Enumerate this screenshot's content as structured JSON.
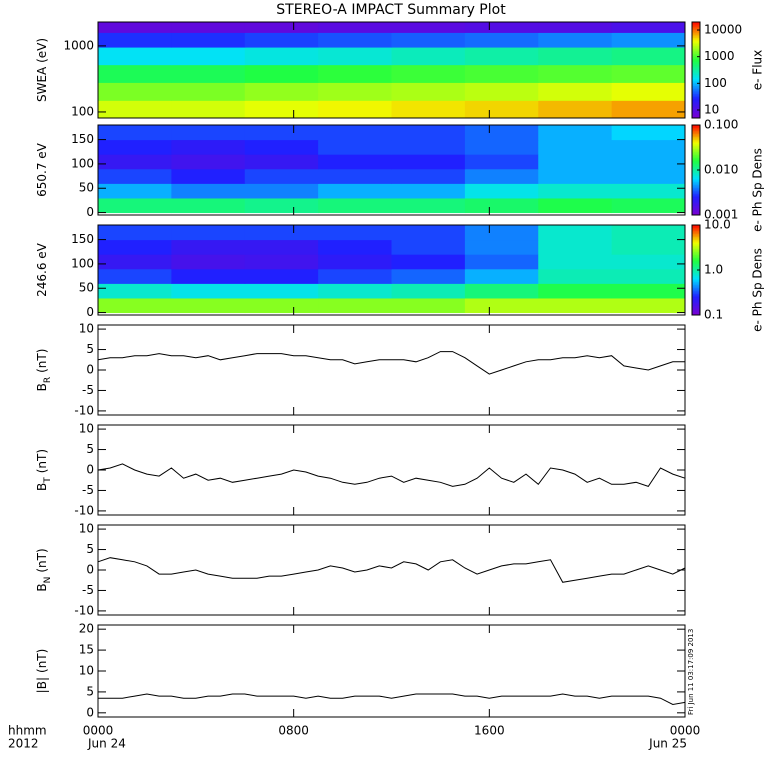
{
  "chart_data": [
    {
      "type": "heatmap",
      "title": "STEREO-A IMPACT Summary Plot",
      "ylabel": "SWEA (eV)",
      "log_y": true,
      "ylim": [
        81,
        2300
      ],
      "yticks": [
        100,
        1000
      ],
      "xlim": [
        0,
        24
      ],
      "xticks": [
        0,
        8,
        16,
        24
      ],
      "xbins": [
        0,
        3,
        6,
        9,
        12,
        15,
        18,
        21,
        24
      ],
      "ybins": [
        81,
        150,
        280,
        520,
        960,
        1600,
        2300
      ],
      "z": [
        [
          3000,
          3000,
          3500,
          4000,
          4500,
          5000,
          6000,
          7000
        ],
        [
          1500,
          1500,
          1800,
          2000,
          2200,
          2500,
          3000,
          3500
        ],
        [
          600,
          600,
          700,
          800,
          900,
          1000,
          1100,
          1200
        ],
        [
          150,
          150,
          180,
          200,
          250,
          300,
          350,
          400
        ],
        [
          30,
          30,
          35,
          40,
          45,
          50,
          60,
          70
        ],
        [
          8,
          8,
          8,
          9,
          9,
          10,
          10,
          12
        ]
      ],
      "clim": [
        5,
        20000
      ],
      "cticks": [
        10,
        100,
        1000,
        10000
      ],
      "colorbar_label": "e- Flux",
      "colormap": [
        "#7a00d0",
        "#2020ff",
        "#00e0ff",
        "#20ff40",
        "#f0ff00",
        "#ff0000"
      ]
    },
    {
      "type": "heatmap",
      "ylabel": "650.7 eV",
      "log_y": false,
      "ylim": [
        -5,
        180
      ],
      "yticks": [
        0,
        50,
        100,
        150
      ],
      "xlim": [
        0,
        24
      ],
      "xticks": [
        0,
        8,
        16,
        24
      ],
      "xbins": [
        0,
        3,
        6,
        9,
        12,
        15,
        18,
        21,
        24
      ],
      "ybins": [
        0,
        30,
        60,
        90,
        120,
        150,
        180
      ],
      "z": [
        [
          0.012,
          0.012,
          0.011,
          0.012,
          0.012,
          0.013,
          0.015,
          0.014
        ],
        [
          0.005,
          0.004,
          0.004,
          0.005,
          0.005,
          0.007,
          0.008,
          0.008
        ],
        [
          0.003,
          0.0025,
          0.003,
          0.003,
          0.003,
          0.004,
          0.005,
          0.005
        ],
        [
          0.002,
          0.0018,
          0.002,
          0.0025,
          0.0025,
          0.003,
          0.005,
          0.005
        ],
        [
          0.0025,
          0.0022,
          0.0025,
          0.003,
          0.003,
          0.0035,
          0.005,
          0.005
        ],
        [
          0.003,
          0.003,
          0.003,
          0.003,
          0.003,
          0.0035,
          0.005,
          0.006
        ]
      ],
      "clim": [
        0.001,
        0.1
      ],
      "cticks": [
        0.001,
        {
          "value": 0.01,
          "label": "0.010"
        },
        {
          "value": 0.1,
          "label": "0.100"
        }
      ],
      "colorbar_label": "e- Ph Sp Dens",
      "colormap": [
        "#7a00d0",
        "#2020ff",
        "#00e0ff",
        "#20ff40",
        "#f0ff00",
        "#ff0000"
      ]
    },
    {
      "type": "heatmap",
      "ylabel": "246.6 eV",
      "log_y": false,
      "ylim": [
        -5,
        180
      ],
      "yticks": [
        0,
        50,
        100,
        150
      ],
      "xlim": [
        0,
        24
      ],
      "xticks": [
        0,
        8,
        16,
        24
      ],
      "xbins": [
        0,
        3,
        6,
        9,
        12,
        15,
        18,
        21,
        24
      ],
      "ybins": [
        0,
        30,
        60,
        90,
        120,
        150,
        180
      ],
      "z": [
        [
          2.5,
          2.5,
          2.5,
          2.5,
          2.5,
          3,
          3,
          3
        ],
        [
          0.8,
          0.7,
          0.7,
          0.8,
          0.9,
          1.2,
          1.5,
          1.5
        ],
        [
          0.3,
          0.25,
          0.25,
          0.3,
          0.35,
          0.5,
          0.9,
          0.9
        ],
        [
          0.2,
          0.17,
          0.18,
          0.22,
          0.25,
          0.35,
          0.8,
          0.8
        ],
        [
          0.25,
          0.2,
          0.2,
          0.25,
          0.3,
          0.4,
          0.8,
          0.9
        ],
        [
          0.3,
          0.3,
          0.3,
          0.3,
          0.3,
          0.4,
          0.8,
          0.9
        ]
      ],
      "clim": [
        0.1,
        10
      ],
      "cticks": [
        0.1,
        {
          "value": 1,
          "label": "1.0"
        },
        {
          "value": 10,
          "label": "10.0"
        }
      ],
      "colorbar_label": "e- Ph Sp Dens",
      "colormap": [
        "#7a00d0",
        "#2020ff",
        "#00e0ff",
        "#20ff40",
        "#f0ff00",
        "#ff0000"
      ]
    },
    {
      "type": "line",
      "ylabel": "B",
      "ylabel_sub": "R",
      "ylabel_unit": "(nT)",
      "color": "#000000",
      "ylim": [
        -11,
        11
      ],
      "yticks": [
        -10,
        -5,
        0,
        5,
        10
      ],
      "xlim": [
        0,
        24
      ],
      "xticks": [
        0,
        8,
        16,
        24
      ],
      "x": [
        0,
        0.5,
        1,
        1.5,
        2,
        2.5,
        3,
        3.5,
        4,
        4.5,
        5,
        5.5,
        6,
        6.5,
        7,
        7.5,
        8,
        8.5,
        9,
        9.5,
        10,
        10.5,
        11,
        11.5,
        12,
        12.5,
        13,
        13.5,
        14,
        14.5,
        15,
        15.5,
        16,
        16.5,
        17,
        17.5,
        18,
        18.5,
        19,
        19.5,
        20,
        20.5,
        21,
        21.5,
        22,
        22.5,
        23,
        23.5,
        24
      ],
      "values": [
        2.5,
        3,
        3,
        3.5,
        3.5,
        4,
        3.5,
        3.5,
        3,
        3.5,
        2.5,
        3,
        3.5,
        4,
        4,
        4,
        3.5,
        3.5,
        3,
        2.5,
        2.5,
        1.5,
        2,
        2.5,
        2.5,
        2.5,
        2,
        3,
        4.5,
        4.5,
        3,
        1,
        -1,
        0,
        1,
        2,
        2.5,
        2.5,
        3,
        3,
        3.5,
        3,
        3.5,
        1,
        0.5,
        0,
        1,
        2,
        2
      ]
    },
    {
      "type": "line",
      "ylabel": "B",
      "ylabel_sub": "T",
      "ylabel_unit": "(nT)",
      "color": "#000000",
      "ylim": [
        -11,
        11
      ],
      "yticks": [
        -10,
        -5,
        0,
        5,
        10
      ],
      "xlim": [
        0,
        24
      ],
      "xticks": [
        0,
        8,
        16,
        24
      ],
      "x": [
        0,
        0.5,
        1,
        1.5,
        2,
        2.5,
        3,
        3.5,
        4,
        4.5,
        5,
        5.5,
        6,
        6.5,
        7,
        7.5,
        8,
        8.5,
        9,
        9.5,
        10,
        10.5,
        11,
        11.5,
        12,
        12.5,
        13,
        13.5,
        14,
        14.5,
        15,
        15.5,
        16,
        16.5,
        17,
        17.5,
        18,
        18.5,
        19,
        19.5,
        20,
        20.5,
        21,
        21.5,
        22,
        22.5,
        23,
        23.5,
        24
      ],
      "values": [
        0,
        0.5,
        1.5,
        0,
        -1,
        -1.5,
        0.5,
        -2,
        -1,
        -2.5,
        -2,
        -3,
        -2.5,
        -2,
        -1.5,
        -1,
        0,
        -0.5,
        -1.5,
        -2,
        -3,
        -3.5,
        -3,
        -2,
        -1.5,
        -3,
        -2,
        -2.5,
        -3,
        -4,
        -3.5,
        -2,
        0.5,
        -2,
        -3,
        -1,
        -3.5,
        0.5,
        0,
        -1,
        -3,
        -2,
        -3.5,
        -3.5,
        -3,
        -4,
        0.5,
        -1,
        -2
      ]
    },
    {
      "type": "line",
      "ylabel": "B",
      "ylabel_sub": "N",
      "ylabel_unit": "(nT)",
      "color": "#000000",
      "ylim": [
        -11,
        11
      ],
      "yticks": [
        -10,
        -5,
        0,
        5,
        10
      ],
      "xlim": [
        0,
        24
      ],
      "xticks": [
        0,
        8,
        16,
        24
      ],
      "x": [
        0,
        0.5,
        1,
        1.5,
        2,
        2.5,
        3,
        3.5,
        4,
        4.5,
        5,
        5.5,
        6,
        6.5,
        7,
        7.5,
        8,
        8.5,
        9,
        9.5,
        10,
        10.5,
        11,
        11.5,
        12,
        12.5,
        13,
        13.5,
        14,
        14.5,
        15,
        15.5,
        16,
        16.5,
        17,
        17.5,
        18,
        18.5,
        19,
        19.5,
        20,
        20.5,
        21,
        21.5,
        22,
        22.5,
        23,
        23.5,
        24
      ],
      "values": [
        2,
        3,
        2.5,
        2,
        1,
        -1,
        -1,
        -0.5,
        0,
        -1,
        -1.5,
        -2,
        -2,
        -2,
        -1.5,
        -1.5,
        -1,
        -0.5,
        0,
        1,
        0.5,
        -0.5,
        0,
        1,
        0.5,
        2,
        1.5,
        0,
        2,
        2.5,
        0.5,
        -1,
        0,
        1,
        1.5,
        1.5,
        2,
        2.5,
        -3,
        -2.5,
        -2,
        -1.5,
        -1,
        -1,
        0,
        1,
        0,
        -1,
        0.5
      ]
    },
    {
      "type": "line",
      "ylabel": "|B|",
      "ylabel_unit": "(nT)",
      "color": "#000000",
      "ylim": [
        -1,
        21
      ],
      "yticks": [
        0,
        5,
        10,
        15,
        20
      ],
      "xlim": [
        0,
        24
      ],
      "xticks": [
        {
          "value": 0,
          "label": "0000"
        },
        {
          "value": 8,
          "label": "0800"
        },
        {
          "value": 16,
          "label": "1600"
        },
        {
          "value": 24,
          "label": "0000"
        }
      ],
      "x": [
        0,
        0.5,
        1,
        1.5,
        2,
        2.5,
        3,
        3.5,
        4,
        4.5,
        5,
        5.5,
        6,
        6.5,
        7,
        7.5,
        8,
        8.5,
        9,
        9.5,
        10,
        10.5,
        11,
        11.5,
        12,
        12.5,
        13,
        13.5,
        14,
        14.5,
        15,
        15.5,
        16,
        16.5,
        17,
        17.5,
        18,
        18.5,
        19,
        19.5,
        20,
        20.5,
        21,
        21.5,
        22,
        22.5,
        23,
        23.5,
        24
      ],
      "values": [
        3.5,
        3.5,
        3.5,
        4,
        4.5,
        4,
        4,
        3.5,
        3.5,
        4,
        4,
        4.5,
        4.5,
        4,
        4,
        4,
        4,
        3.5,
        4,
        3.5,
        3.5,
        4,
        4,
        4,
        3.5,
        4,
        4.5,
        4.5,
        4.5,
        4.5,
        4,
        4,
        3.5,
        4,
        4,
        4,
        4,
        4,
        4.5,
        4,
        4,
        3.5,
        4,
        4,
        4,
        4,
        3.5,
        2,
        2.5
      ],
      "time_format": "hhmm",
      "year": "2012",
      "start_date": "Jun 24",
      "end_date": "Jun 25",
      "stamp": "Fri Jun 11 03:17:09 2013"
    }
  ]
}
